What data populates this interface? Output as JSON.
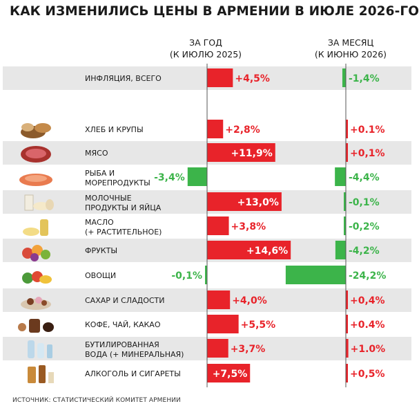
{
  "title": "КАК ИЗМЕНИЛИСЬ ЦЕНЫ В АРМЕНИИ В ИЮЛЕ 2026-ГО",
  "headers": {
    "year_line1": "ЗА ГОД",
    "year_line2": "(К ИЮЛЮ 2025)",
    "month_line1": "ЗА МЕСЯЦ",
    "month_line2": "(К ИЮНЮ 2026)"
  },
  "source": "ИСТОЧНИК: СТАТИСТИЧЕСКИЙ КОМИТЕТ АРМЕНИИ",
  "colors": {
    "increase": "#e8232a",
    "decrease": "#3cb44a",
    "row_shade": "#e7e7e7",
    "axis": "#555555"
  },
  "chart_data": [
    {
      "type": "bar",
      "orientation": "horizontal",
      "xlabel": "ЗА ГОД (К ИЮЛЮ 2025)",
      "categories": [
        "ИНФЛЯЦИЯ, ВСЕГО",
        "ХЛЕБ И КРУПЫ",
        "МЯСО",
        "РЫБА И МОРЕПРОДУКТЫ",
        "МОЛОЧНЫЕ ПРОДУКТЫ И ЯЙЦА",
        "МАСЛО (+ РАСТИТЕЛЬНОЕ)",
        "ФРУКТЫ",
        "ОВОЩИ",
        "САХАР И СЛАДОСТИ",
        "КОФЕ, ЧАЙ, КАКАО",
        "БУТИЛИРОВАННАЯ ВОДА (+ МИНЕРАЛЬНАЯ)",
        "АЛКОГОЛЬ И СИГАРЕТЫ"
      ],
      "values": [
        4.5,
        2.8,
        11.9,
        -3.4,
        13.0,
        3.8,
        14.6,
        -0.1,
        4.0,
        5.5,
        3.7,
        7.5
      ],
      "labels": [
        "+4,5%",
        "+2,8%",
        "+11,9%",
        "-3,4%",
        "+13,0%",
        "+3,8%",
        "+14,6%",
        "-0,1%",
        "+4,0%",
        "+5,5%",
        "+3,7%",
        "+7,5%"
      ]
    },
    {
      "type": "bar",
      "orientation": "horizontal",
      "xlabel": "ЗА МЕСЯЦ (К ИЮНЮ 2026)",
      "categories": [
        "ИНФЛЯЦИЯ, ВСЕГО",
        "ХЛЕБ И КРУПЫ",
        "МЯСО",
        "РЫБА И МОРЕПРОДУКТЫ",
        "МОЛОЧНЫЕ ПРОДУКТЫ И ЯЙЦА",
        "МАСЛО (+ РАСТИТЕЛЬНОЕ)",
        "ФРУКТЫ",
        "ОВОЩИ",
        "САХАР И СЛАДОСТИ",
        "КОФЕ, ЧАЙ, КАКАО",
        "БУТИЛИРОВАННАЯ ВОДА (+ МИНЕРАЛЬНАЯ)",
        "АЛКОГОЛЬ И СИГАРЕТЫ"
      ],
      "values": [
        -1.4,
        0.1,
        0.1,
        -4.4,
        -0.1,
        -0.2,
        -4.2,
        -24.2,
        0.4,
        0.4,
        1.0,
        0.5
      ],
      "labels": [
        "-1,4%",
        "+0.1%",
        "+0,1%",
        "-4,4%",
        "-0,1%",
        "-0,2%",
        "-4,2%",
        "-24,2%",
        "+0,4%",
        "+0.4%",
        "+1.0%",
        "+0,5%"
      ]
    }
  ],
  "rows": [
    {
      "line1": "ИНФЛЯЦИЯ, ВСЕГО",
      "line2": "",
      "icon": "none",
      "shade": true
    },
    {
      "line1": "ХЛЕБ И КРУПЫ",
      "line2": "",
      "icon": "bread-icon",
      "shade": false
    },
    {
      "line1": "МЯСО",
      "line2": "",
      "icon": "meat-icon",
      "shade": true
    },
    {
      "line1": "РЫБА И",
      "line2": "МОРЕПРОДУКТЫ",
      "icon": "fish-icon",
      "shade": false
    },
    {
      "line1": "МОЛОЧНЫЕ",
      "line2": "ПРОДУКТЫ И ЯЙЦА",
      "icon": "dairy-icon",
      "shade": true
    },
    {
      "line1": "МАСЛО",
      "line2": "(+ РАСТИТЕЛЬНОЕ)",
      "icon": "oil-icon",
      "shade": false
    },
    {
      "line1": "ФРУКТЫ",
      "line2": "",
      "icon": "fruit-icon",
      "shade": true
    },
    {
      "line1": "ОВОЩИ",
      "line2": "",
      "icon": "vegetables-icon",
      "shade": false
    },
    {
      "line1": "САХАР И СЛАДОСТИ",
      "line2": "",
      "icon": "sweets-icon",
      "shade": true
    },
    {
      "line1": "КОФЕ, ЧАЙ, КАКАО",
      "line2": "",
      "icon": "coffee-icon",
      "shade": false
    },
    {
      "line1": "БУТИЛИРОВАННАЯ",
      "line2": "ВОДА (+ МИНЕРАЛЬНАЯ)",
      "icon": "water-bottle-icon",
      "shade": true
    },
    {
      "line1": "АЛКОГОЛЬ И СИГАРЕТЫ",
      "line2": "",
      "icon": "alcohol-icon",
      "shade": false
    }
  ]
}
